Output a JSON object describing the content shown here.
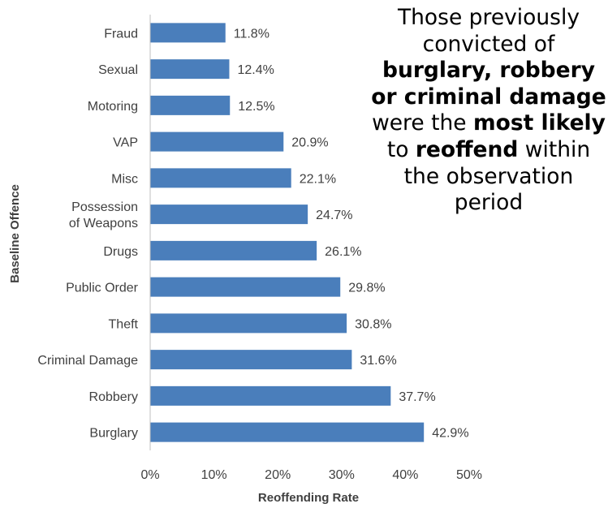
{
  "chart_data": {
    "type": "bar",
    "orientation": "horizontal",
    "categories": [
      "Fraud",
      "Sexual",
      "Motoring",
      "VAP",
      "Misc",
      "Possession of Weapons",
      "Drugs",
      "Public Order",
      "Theft",
      "Criminal Damage",
      "Robbery",
      "Burglary"
    ],
    "values": [
      11.8,
      12.4,
      12.5,
      20.9,
      22.1,
      24.7,
      26.1,
      29.8,
      30.8,
      31.6,
      37.7,
      42.9
    ],
    "value_labels": [
      "11.8%",
      "12.4%",
      "12.5%",
      "20.9%",
      "22.1%",
      "24.7%",
      "26.1%",
      "29.8%",
      "30.8%",
      "31.6%",
      "37.7%",
      "42.9%"
    ],
    "xlabel": "Reoffending Rate",
    "ylabel": "Baseline Offence",
    "xlim": [
      0,
      50
    ],
    "x_ticks": [
      "0%",
      "10%",
      "20%",
      "30%",
      "40%",
      "50%"
    ],
    "grid": false,
    "bar_color": "#4a7ebb"
  },
  "callout": {
    "segments": [
      {
        "text": "Those previously convicted of ",
        "bold": false
      },
      {
        "text": "burglary, robbery or criminal damage",
        "bold": true
      },
      {
        "text": " were the ",
        "bold": false
      },
      {
        "text": "most likely",
        "bold": true
      },
      {
        "text": " to ",
        "bold": false
      },
      {
        "text": "reoffend",
        "bold": true
      },
      {
        "text": " within the observation period",
        "bold": false
      }
    ]
  }
}
